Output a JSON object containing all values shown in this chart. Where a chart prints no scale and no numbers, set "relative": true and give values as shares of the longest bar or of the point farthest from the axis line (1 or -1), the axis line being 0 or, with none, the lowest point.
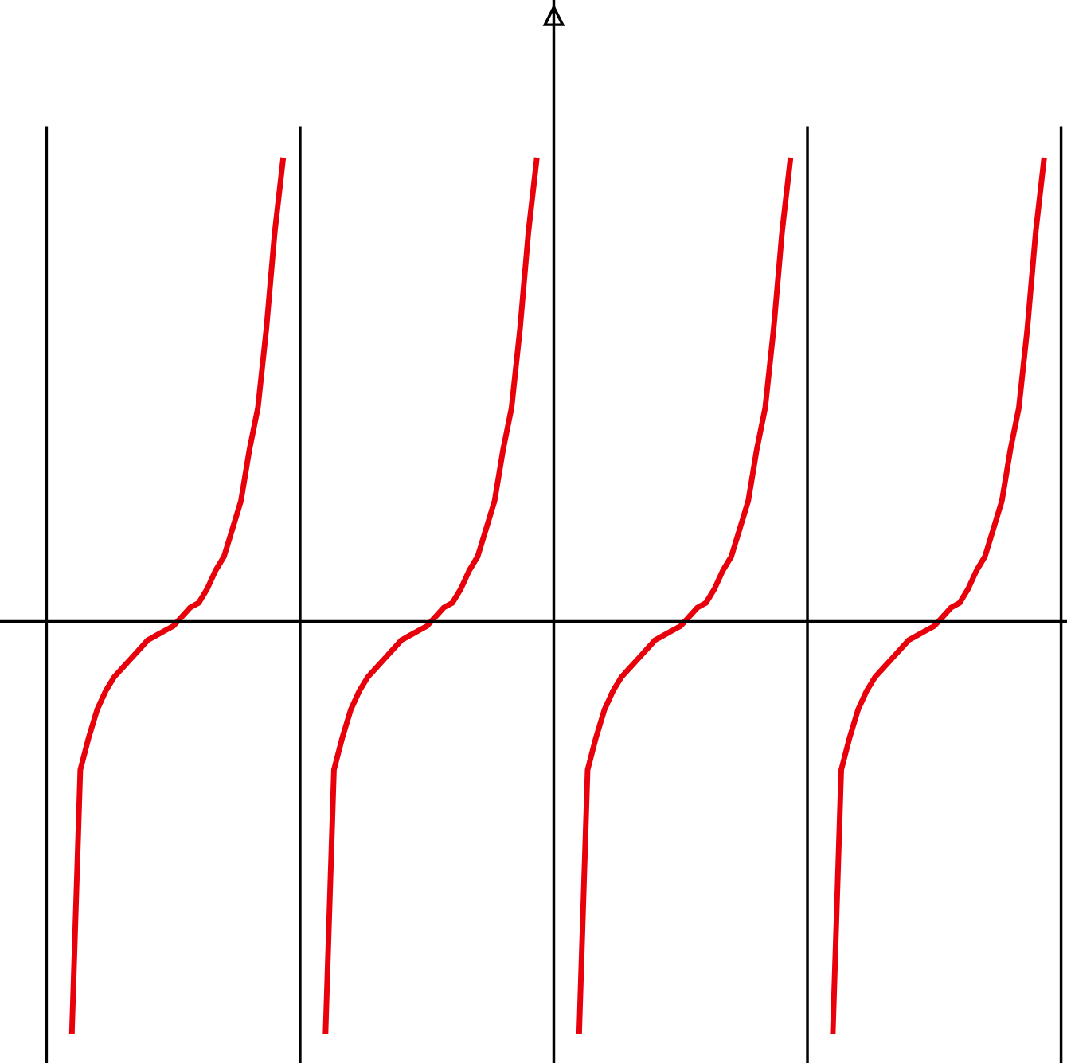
{
  "chart_data": {
    "type": "line",
    "relative": true,
    "categories": [
      null,
      null,
      null,
      null,
      null,
      null,
      null,
      null,
      null,
      null,
      null,
      null,
      null,
      null,
      null,
      null,
      null,
      null,
      null,
      null,
      null,
      null,
      null,
      null,
      null,
      null,
      null,
      null,
      null,
      null,
      null,
      null,
      null,
      null,
      null,
      null,
      null,
      null,
      null,
      null,
      null,
      null,
      null,
      null,
      null,
      null,
      null,
      null,
      null,
      null,
      null,
      null,
      null,
      null,
      null,
      null,
      null,
      null,
      null,
      null,
      null,
      null,
      null,
      null,
      null,
      null,
      null,
      null,
      null,
      null,
      null,
      null,
      null,
      null,
      null,
      null,
      null,
      null,
      null,
      null,
      null,
      null,
      null,
      null,
      null,
      null,
      null,
      null,
      null,
      null,
      null,
      null,
      null,
      null,
      null,
      null,
      null,
      null,
      null,
      null,
      null,
      null,
      null,
      null,
      null,
      null,
      null,
      null,
      null,
      null,
      null,
      null,
      null,
      null,
      null,
      null,
      null,
      null,
      null,
      null,
      null,
      null,
      null,
      null,
      null
    ],
    "series": [
      {
        "color": "#e8000b",
        "values": [
          null,
          null,
          null,
          null,
          null,
          null,
          null,
          -0.89,
          -0.32,
          -0.25,
          -0.19,
          -0.15,
          -0.12,
          -0.1,
          -0.08,
          -0.06,
          -0.04,
          -0.03,
          -0.02,
          -0.01,
          0.01,
          0.03,
          0.04,
          0.07,
          0.11,
          0.14,
          0.2,
          0.26,
          0.37,
          0.46,
          0.63,
          0.84,
          1.0,
          null,
          null,
          null,
          null,
          null,
          null,
          null,
          null,
          null,
          null,
          null,
          null,
          null,
          null,
          null,
          null,
          null,
          null,
          null,
          null,
          null,
          null,
          null,
          null,
          null,
          null,
          null,
          null,
          null,
          null,
          null,
          null,
          null,
          null,
          null,
          null,
          null,
          null,
          null,
          null,
          null,
          null,
          null,
          null,
          null,
          null,
          null,
          null,
          null,
          null,
          null,
          null,
          null,
          null,
          null,
          null,
          null,
          null,
          null,
          null,
          null,
          null,
          null,
          null,
          null,
          null,
          null,
          null,
          null,
          null,
          null,
          null,
          null,
          null,
          null,
          null,
          null,
          null,
          null,
          null,
          null,
          null,
          null,
          null,
          null,
          null,
          null,
          null,
          null,
          null,
          null,
          null
        ]
      },
      {
        "color": "#e8000b",
        "values": [
          null,
          null,
          null,
          null,
          null,
          null,
          null,
          null,
          null,
          null,
          null,
          null,
          null,
          null,
          null,
          null,
          null,
          null,
          null,
          null,
          null,
          null,
          null,
          null,
          null,
          null,
          null,
          null,
          null,
          null,
          null,
          null,
          null,
          null,
          null,
          null,
          null,
          -0.89,
          -0.32,
          -0.25,
          -0.19,
          -0.15,
          -0.12,
          -0.1,
          -0.08,
          -0.06,
          -0.04,
          -0.03,
          -0.02,
          -0.01,
          0.01,
          0.03,
          0.04,
          0.07,
          0.11,
          0.14,
          0.2,
          0.26,
          0.37,
          0.46,
          0.63,
          0.84,
          1.0,
          null,
          null,
          null,
          null,
          null,
          null,
          null,
          null,
          null,
          null,
          null,
          null,
          null,
          null,
          null,
          null,
          null,
          null,
          null,
          null,
          null,
          null,
          null,
          null,
          null,
          null,
          null,
          null,
          null,
          null,
          null,
          null,
          null,
          null,
          null,
          null,
          null,
          null,
          null,
          null,
          null,
          null,
          null,
          null,
          null,
          null,
          null,
          null,
          null,
          null,
          null,
          null,
          null,
          null,
          null,
          null,
          null,
          null,
          null,
          null,
          null,
          null
        ]
      },
      {
        "color": "#e8000b",
        "values": [
          null,
          null,
          null,
          null,
          null,
          null,
          null,
          null,
          null,
          null,
          null,
          null,
          null,
          null,
          null,
          null,
          null,
          null,
          null,
          null,
          null,
          null,
          null,
          null,
          null,
          null,
          null,
          null,
          null,
          null,
          null,
          null,
          null,
          null,
          null,
          null,
          null,
          null,
          null,
          null,
          null,
          null,
          null,
          null,
          null,
          null,
          null,
          null,
          null,
          null,
          null,
          null,
          null,
          null,
          null,
          null,
          null,
          null,
          null,
          null,
          null,
          null,
          null,
          null,
          null,
          null,
          null,
          -0.89,
          -0.32,
          -0.25,
          -0.19,
          -0.15,
          -0.12,
          -0.1,
          -0.08,
          -0.06,
          -0.04,
          -0.03,
          -0.02,
          -0.01,
          0.01,
          0.03,
          0.04,
          0.07,
          0.11,
          0.14,
          0.2,
          0.26,
          0.37,
          0.46,
          0.63,
          0.84,
          1.0,
          null,
          null,
          null,
          null,
          null,
          null,
          null,
          null,
          null,
          null,
          null,
          null,
          null,
          null,
          null,
          null,
          null,
          null,
          null,
          null,
          null,
          null,
          null,
          null,
          null,
          null,
          null,
          null,
          null,
          null,
          null,
          null
        ]
      },
      {
        "color": "#e8000b",
        "values": [
          null,
          null,
          null,
          null,
          null,
          null,
          null,
          null,
          null,
          null,
          null,
          null,
          null,
          null,
          null,
          null,
          null,
          null,
          null,
          null,
          null,
          null,
          null,
          null,
          null,
          null,
          null,
          null,
          null,
          null,
          null,
          null,
          null,
          null,
          null,
          null,
          null,
          null,
          null,
          null,
          null,
          null,
          null,
          null,
          null,
          null,
          null,
          null,
          null,
          null,
          null,
          null,
          null,
          null,
          null,
          null,
          null,
          null,
          null,
          null,
          null,
          null,
          null,
          null,
          null,
          null,
          null,
          null,
          null,
          null,
          null,
          null,
          null,
          null,
          null,
          null,
          null,
          null,
          null,
          null,
          null,
          null,
          null,
          null,
          null,
          null,
          null,
          null,
          null,
          null,
          null,
          null,
          null,
          null,
          null,
          null,
          null,
          -0.89,
          -0.32,
          -0.25,
          -0.19,
          -0.15,
          -0.12,
          -0.1,
          -0.08,
          -0.06,
          -0.04,
          -0.03,
          -0.02,
          -0.01,
          0.01,
          0.03,
          0.04,
          0.07,
          0.11,
          0.14,
          0.2,
          0.26,
          0.37,
          0.46,
          0.63,
          0.84,
          1.0,
          null,
          null
        ]
      }
    ]
  }
}
